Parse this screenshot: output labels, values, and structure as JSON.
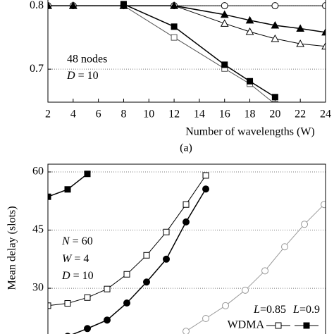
{
  "chart_data": [
    {
      "type": "line",
      "x_label": "Number of wavelengths (W)",
      "subtitle": "(a)",
      "annotations": [
        "48 nodes",
        "D = 10"
      ],
      "xlim": [
        2,
        24
      ],
      "ylim": [
        0.648,
        0.809
      ],
      "xticks": [
        2,
        4,
        6,
        8,
        10,
        12,
        14,
        16,
        18,
        20,
        22,
        24
      ],
      "yticks": [
        0.7,
        0.8
      ],
      "grid": true,
      "series": [
        {
          "marker": "circle",
          "filled": false,
          "color": "#000000",
          "x": [
            2,
            4,
            8,
            12,
            16,
            20,
            24
          ],
          "values": [
            0.8,
            0.8,
            0.8,
            0.8,
            0.8,
            0.8,
            0.8
          ]
        },
        {
          "marker": "square",
          "filled": false,
          "color": "#555555",
          "x": [
            8,
            12,
            16,
            18,
            20
          ],
          "values": [
            0.8,
            0.75,
            0.701,
            0.677,
            0.645
          ]
        },
        {
          "marker": "square",
          "filled": true,
          "color": "#000000",
          "x": [
            8,
            12,
            16,
            18,
            20
          ],
          "values": [
            0.8025,
            0.767,
            0.707,
            0.681,
            0.656
          ]
        },
        {
          "marker": "triangle",
          "filled": false,
          "color": "#000000",
          "x": [
            2,
            4,
            8,
            12,
            16,
            18,
            20,
            22,
            24
          ],
          "values": [
            0.8,
            0.8,
            0.8,
            0.8,
            0.772,
            0.759,
            0.748,
            0.74,
            0.736
          ]
        },
        {
          "marker": "triangle",
          "filled": true,
          "color": "#000000",
          "x": [
            2,
            4,
            8,
            12,
            16,
            18,
            20,
            22,
            24
          ],
          "values": [
            0.8,
            0.8,
            0.8,
            0.8,
            0.786,
            0.777,
            0.769,
            0.764,
            0.758
          ]
        }
      ]
    },
    {
      "type": "line",
      "y_label": "Mean delay (slots)",
      "annotations": [
        "N = 60",
        "W = 4",
        "D = 10"
      ],
      "legend": {
        "columns": [
          "L=0.85",
          "L=0.9"
        ],
        "rows": [
          "WDMA"
        ]
      },
      "xlim": [
        1,
        15.07
      ],
      "ylim": [
        18.2,
        62
      ],
      "yticks": [
        30,
        45,
        60
      ],
      "grid": true,
      "series": [
        {
          "marker": "circle",
          "filled": false,
          "color": "#999999",
          "x": [
            8,
            9,
            10,
            11,
            12,
            13,
            14,
            15
          ],
          "values": [
            18.9,
            22.2,
            25.5,
            29.5,
            34.5,
            40.7,
            46.5,
            51.6
          ]
        },
        {
          "marker": "circle",
          "filled": true,
          "color": "#000000",
          "x": [
            2,
            3,
            4,
            5,
            6,
            7,
            8,
            9
          ],
          "values": [
            17.6,
            19.6,
            21.8,
            26.2,
            31.6,
            37.5,
            47.1,
            55.6
          ]
        },
        {
          "name": "L=0.85",
          "marker": "square",
          "filled": false,
          "color": "#000000",
          "x": [
            1,
            2,
            3,
            4,
            5,
            6,
            7,
            8,
            9
          ],
          "values": [
            25.5,
            26.1,
            27.6,
            29.8,
            33.6,
            38.5,
            44.5,
            51.6,
            59.1
          ]
        },
        {
          "name": "L=0.9",
          "marker": "square",
          "filled": true,
          "color": "#000000",
          "x": [
            1,
            2,
            3
          ],
          "values": [
            53.6,
            55.5,
            59.5
          ]
        }
      ]
    }
  ]
}
